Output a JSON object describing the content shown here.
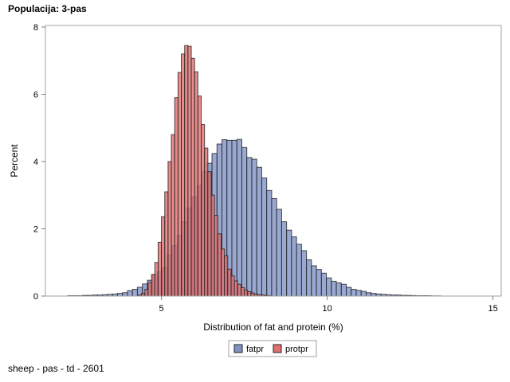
{
  "header": {
    "title": "Populacija: 3-pas"
  },
  "footnote": "sheep - pas - td - 2601",
  "chart_data": {
    "type": "histogram",
    "xlabel": "Distribution of fat and protein (%)",
    "ylabel": "Percent",
    "xlim": [
      1.5,
      15.25
    ],
    "ylim": [
      0,
      8
    ],
    "xticks": [
      5,
      10,
      15
    ],
    "yticks": [
      0,
      2,
      4,
      6,
      8
    ],
    "grid": false,
    "legend_position": "bottom",
    "series": [
      {
        "name": "fatpr",
        "color": "#7f92c4",
        "bin_width": 0.15,
        "centers": [
          2.25,
          2.4,
          2.55,
          2.7,
          2.85,
          3.0,
          3.15,
          3.3,
          3.45,
          3.6,
          3.75,
          3.9,
          4.05,
          4.2,
          4.35,
          4.5,
          4.65,
          4.8,
          4.95,
          5.1,
          5.25,
          5.4,
          5.55,
          5.7,
          5.85,
          6.0,
          6.15,
          6.3,
          6.45,
          6.6,
          6.75,
          6.9,
          7.05,
          7.2,
          7.35,
          7.5,
          7.65,
          7.8,
          7.95,
          8.1,
          8.25,
          8.4,
          8.55,
          8.7,
          8.85,
          9.0,
          9.15,
          9.3,
          9.45,
          9.6,
          9.75,
          9.9,
          10.05,
          10.2,
          10.35,
          10.5,
          10.65,
          10.8,
          10.95,
          11.1,
          11.25,
          11.4,
          11.55,
          11.7,
          11.85,
          12.0,
          12.15,
          12.3,
          12.45,
          12.6,
          12.75,
          12.9,
          13.05,
          13.2,
          13.35
        ],
        "values": [
          0.01,
          0.01,
          0.01,
          0.02,
          0.02,
          0.03,
          0.03,
          0.04,
          0.05,
          0.06,
          0.08,
          0.1,
          0.16,
          0.2,
          0.26,
          0.36,
          0.47,
          0.64,
          0.72,
          0.85,
          1.22,
          1.5,
          1.8,
          2.21,
          2.62,
          2.95,
          3.29,
          3.7,
          3.95,
          4.24,
          4.52,
          4.65,
          4.63,
          4.63,
          4.66,
          4.42,
          4.12,
          4.07,
          3.83,
          3.51,
          3.14,
          2.9,
          2.58,
          2.21,
          1.96,
          1.76,
          1.54,
          1.35,
          1.08,
          0.9,
          0.79,
          0.68,
          0.54,
          0.44,
          0.39,
          0.35,
          0.26,
          0.2,
          0.17,
          0.14,
          0.1,
          0.08,
          0.06,
          0.05,
          0.04,
          0.03,
          0.03,
          0.02,
          0.02,
          0.015,
          0.01,
          0.01,
          0.01,
          0.005,
          0.005
        ]
      },
      {
        "name": "protpr",
        "color": "#e07070",
        "bin_width": 0.1,
        "centers": [
          4.35,
          4.45,
          4.55,
          4.65,
          4.75,
          4.85,
          4.95,
          5.05,
          5.15,
          5.25,
          5.35,
          5.45,
          5.55,
          5.65,
          5.75,
          5.85,
          5.95,
          6.05,
          6.15,
          6.25,
          6.35,
          6.45,
          6.55,
          6.65,
          6.75,
          6.85,
          6.95,
          7.05,
          7.15,
          7.25,
          7.35,
          7.45,
          7.55,
          7.65,
          7.75,
          7.85,
          7.95,
          8.05,
          8.15,
          8.25
        ],
        "values": [
          0.03,
          0.08,
          0.2,
          0.4,
          0.64,
          1.0,
          1.6,
          2.36,
          3.1,
          4.0,
          4.8,
          5.9,
          6.65,
          7.2,
          7.45,
          7.43,
          7.07,
          6.67,
          5.95,
          5.1,
          4.4,
          3.7,
          3.0,
          2.4,
          1.85,
          1.4,
          1.2,
          0.8,
          0.6,
          0.45,
          0.35,
          0.25,
          0.18,
          0.13,
          0.09,
          0.06,
          0.04,
          0.03,
          0.02,
          0.01
        ]
      }
    ]
  }
}
